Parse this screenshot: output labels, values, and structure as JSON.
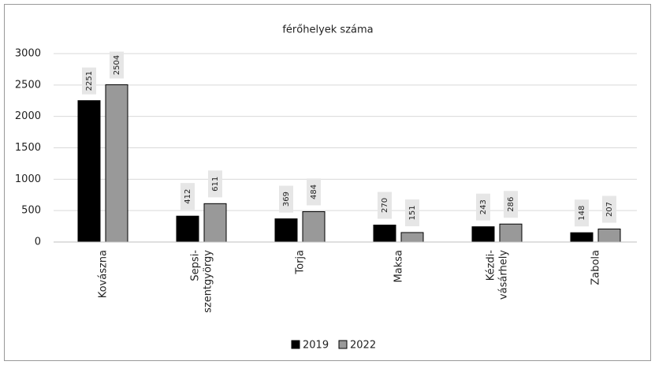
{
  "chart_data": {
    "type": "bar",
    "title": "férőhelyek száma",
    "categories": [
      "Kovászna",
      "Sepsi-\nszentgyörgy",
      "Torja",
      "Maksa",
      "Kézdi-\nvásárhely",
      "Zabola"
    ],
    "series": [
      {
        "name": "2019",
        "color": "#000000",
        "values": [
          2251,
          412,
          369,
          270,
          243,
          148
        ]
      },
      {
        "name": "2022",
        "color": "#999999",
        "values": [
          2504,
          611,
          484,
          151,
          286,
          207
        ]
      }
    ],
    "ylim": [
      0,
      3000
    ],
    "yticks": [
      0,
      500,
      1000,
      1500,
      2000,
      2500,
      3000
    ],
    "grid": true,
    "legend": "bottom"
  }
}
